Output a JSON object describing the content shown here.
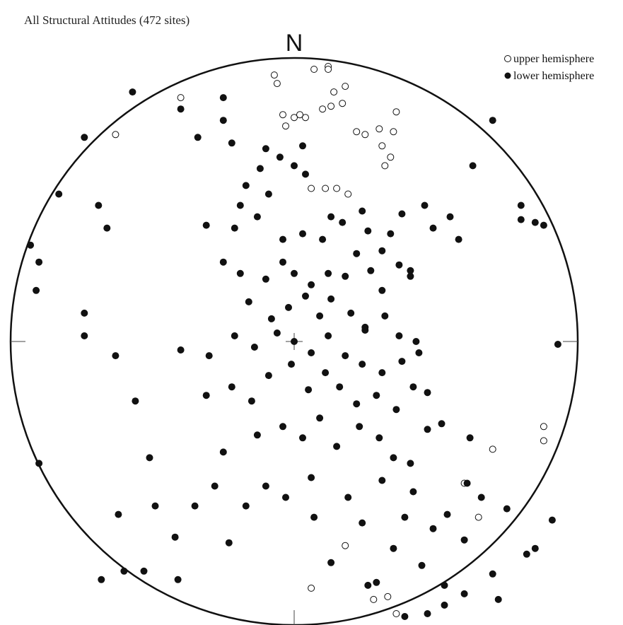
{
  "chart_data": {
    "type": "scatter",
    "projection": "equal-area stereonet",
    "title": "All Structural Attitudes (472 sites)",
    "north_label": "N",
    "legend": {
      "placement": "top-right",
      "entries": [
        {
          "key": "upper",
          "label": "upper hemisphere",
          "marker": "open-circle"
        },
        {
          "key": "lower",
          "label": "lower hemisphere",
          "marker": "filled-circle"
        }
      ]
    },
    "coordinate_note": "points given as normalized positions within the projection circle: x east-positive, y north-positive, radius 1",
    "xlim": [
      -1,
      1
    ],
    "ylim": [
      -1,
      1
    ],
    "series": [
      {
        "name": "upper hemisphere",
        "key": "upper",
        "points": [
          [
            -0.4,
            0.86
          ],
          [
            -0.63,
            0.73
          ],
          [
            -0.07,
            0.94
          ],
          [
            0.07,
            0.96
          ],
          [
            0.12,
            0.97
          ],
          [
            -0.06,
            0.91
          ],
          [
            0.18,
            0.9
          ],
          [
            0.14,
            0.88
          ],
          [
            0.17,
            0.84
          ],
          [
            0.13,
            0.83
          ],
          [
            0.1,
            0.82
          ],
          [
            -0.04,
            0.8
          ],
          [
            0.0,
            0.79
          ],
          [
            0.04,
            0.79
          ],
          [
            0.22,
            0.74
          ],
          [
            0.3,
            0.75
          ],
          [
            0.25,
            0.73
          ],
          [
            -0.03,
            0.76
          ],
          [
            0.02,
            0.8
          ],
          [
            0.11,
            0.54
          ],
          [
            0.15,
            0.54
          ],
          [
            0.19,
            0.52
          ],
          [
            0.06,
            0.54
          ],
          [
            0.34,
            0.65
          ],
          [
            0.31,
            0.69
          ],
          [
            0.32,
            0.62
          ],
          [
            0.12,
            0.96
          ],
          [
            0.36,
            0.81
          ],
          [
            0.35,
            0.74
          ],
          [
            0.7,
            -0.38
          ],
          [
            0.88,
            -0.3
          ],
          [
            0.88,
            -0.35
          ],
          [
            0.6,
            -0.5
          ],
          [
            0.65,
            -0.62
          ],
          [
            0.18,
            -0.72
          ],
          [
            0.06,
            -0.87
          ],
          [
            0.28,
            -0.91
          ],
          [
            0.33,
            -0.9
          ],
          [
            0.36,
            -0.96
          ]
        ]
      },
      {
        "name": "lower hemisphere",
        "key": "lower",
        "points": [
          [
            -0.74,
            0.72
          ],
          [
            -0.57,
            0.88
          ],
          [
            -0.25,
            0.86
          ],
          [
            -0.4,
            0.82
          ],
          [
            -0.25,
            0.78
          ],
          [
            -0.34,
            0.72
          ],
          [
            -0.22,
            0.7
          ],
          [
            -0.1,
            0.68
          ],
          [
            0.03,
            0.69
          ],
          [
            -0.05,
            0.65
          ],
          [
            -0.12,
            0.61
          ],
          [
            0.0,
            0.62
          ],
          [
            -0.17,
            0.55
          ],
          [
            0.04,
            0.59
          ],
          [
            -0.09,
            0.52
          ],
          [
            -0.19,
            0.48
          ],
          [
            -0.31,
            0.41
          ],
          [
            -0.21,
            0.4
          ],
          [
            -0.13,
            0.44
          ],
          [
            -0.04,
            0.36
          ],
          [
            0.03,
            0.38
          ],
          [
            0.1,
            0.36
          ],
          [
            0.13,
            0.44
          ],
          [
            0.17,
            0.42
          ],
          [
            0.24,
            0.46
          ],
          [
            0.26,
            0.39
          ],
          [
            0.34,
            0.38
          ],
          [
            0.31,
            0.32
          ],
          [
            0.38,
            0.45
          ],
          [
            -0.69,
            0.48
          ],
          [
            -0.25,
            0.28
          ],
          [
            -0.19,
            0.24
          ],
          [
            -0.1,
            0.22
          ],
          [
            -0.04,
            0.28
          ],
          [
            0.0,
            0.24
          ],
          [
            0.06,
            0.2
          ],
          [
            0.12,
            0.24
          ],
          [
            0.18,
            0.23
          ],
          [
            0.22,
            0.31
          ],
          [
            0.27,
            0.25
          ],
          [
            0.31,
            0.18
          ],
          [
            0.37,
            0.27
          ],
          [
            0.41,
            0.23
          ],
          [
            -0.16,
            0.14
          ],
          [
            -0.08,
            0.08
          ],
          [
            -0.02,
            0.12
          ],
          [
            0.04,
            0.16
          ],
          [
            0.09,
            0.09
          ],
          [
            0.13,
            0.15
          ],
          [
            0.2,
            0.1
          ],
          [
            0.25,
            0.04
          ],
          [
            0.32,
            0.09
          ],
          [
            0.37,
            0.02
          ],
          [
            0.43,
            0.0
          ],
          [
            -0.74,
            0.1
          ],
          [
            -0.63,
            -0.05
          ],
          [
            -0.4,
            -0.03
          ],
          [
            -0.3,
            -0.05
          ],
          [
            -0.21,
            0.02
          ],
          [
            -0.14,
            -0.02
          ],
          [
            -0.06,
            0.03
          ],
          [
            0.0,
            0.0
          ],
          [
            0.06,
            -0.04
          ],
          [
            0.12,
            0.02
          ],
          [
            0.18,
            -0.05
          ],
          [
            0.24,
            -0.08
          ],
          [
            0.31,
            -0.11
          ],
          [
            0.38,
            -0.07
          ],
          [
            0.44,
            -0.04
          ],
          [
            -0.56,
            -0.21
          ],
          [
            -0.31,
            -0.19
          ],
          [
            -0.22,
            -0.16
          ],
          [
            -0.15,
            -0.21
          ],
          [
            -0.09,
            -0.12
          ],
          [
            -0.01,
            -0.08
          ],
          [
            0.05,
            -0.17
          ],
          [
            0.11,
            -0.11
          ],
          [
            0.16,
            -0.16
          ],
          [
            0.22,
            -0.22
          ],
          [
            0.29,
            -0.19
          ],
          [
            0.36,
            -0.24
          ],
          [
            0.42,
            -0.16
          ],
          [
            0.47,
            -0.18
          ],
          [
            -0.51,
            -0.41
          ],
          [
            -0.25,
            -0.39
          ],
          [
            -0.13,
            -0.33
          ],
          [
            -0.04,
            -0.3
          ],
          [
            0.03,
            -0.34
          ],
          [
            0.09,
            -0.27
          ],
          [
            0.15,
            -0.37
          ],
          [
            0.23,
            -0.3
          ],
          [
            0.3,
            -0.34
          ],
          [
            0.35,
            -0.41
          ],
          [
            0.41,
            -0.43
          ],
          [
            0.47,
            -0.31
          ],
          [
            0.52,
            -0.29
          ],
          [
            0.62,
            -0.34
          ],
          [
            0.61,
            -0.5
          ],
          [
            0.42,
            -0.53
          ],
          [
            0.31,
            -0.49
          ],
          [
            0.19,
            -0.55
          ],
          [
            0.06,
            -0.48
          ],
          [
            -0.03,
            -0.55
          ],
          [
            -0.1,
            -0.51
          ],
          [
            -0.17,
            -0.58
          ],
          [
            -0.28,
            -0.51
          ],
          [
            -0.35,
            -0.58
          ],
          [
            -0.49,
            -0.58
          ],
          [
            -0.62,
            -0.61
          ],
          [
            0.24,
            -0.64
          ],
          [
            0.39,
            -0.62
          ],
          [
            0.49,
            -0.66
          ],
          [
            0.54,
            -0.61
          ],
          [
            0.6,
            -0.7
          ],
          [
            0.66,
            -0.55
          ],
          [
            0.75,
            -0.59
          ],
          [
            0.85,
            -0.73
          ],
          [
            0.91,
            -0.63
          ],
          [
            0.07,
            -0.62
          ],
          [
            -0.23,
            -0.71
          ],
          [
            -0.42,
            -0.69
          ],
          [
            -0.68,
            -0.84
          ],
          [
            -0.6,
            -0.81
          ],
          [
            -0.53,
            -0.81
          ],
          [
            -0.41,
            -0.84
          ],
          [
            0.13,
            -0.78
          ],
          [
            0.35,
            -0.73
          ],
          [
            0.45,
            -0.79
          ],
          [
            0.26,
            -0.86
          ],
          [
            0.53,
            -0.86
          ],
          [
            0.82,
            -0.75
          ],
          [
            0.7,
            -0.82
          ],
          [
            0.6,
            -0.89
          ],
          [
            0.72,
            -0.91
          ],
          [
            0.47,
            -0.96
          ],
          [
            0.39,
            -0.97
          ],
          [
            0.53,
            -0.93
          ],
          [
            0.29,
            -0.85
          ],
          [
            -0.9,
            -0.43
          ],
          [
            -0.9,
            0.28
          ],
          [
            -0.83,
            0.52
          ],
          [
            -0.91,
            0.18
          ],
          [
            0.8,
            0.48
          ],
          [
            0.8,
            0.43
          ],
          [
            0.63,
            0.62
          ],
          [
            0.7,
            0.78
          ],
          [
            0.41,
            0.25
          ],
          [
            0.46,
            0.48
          ],
          [
            0.49,
            0.4
          ],
          [
            0.55,
            0.44
          ],
          [
            0.58,
            0.36
          ],
          [
            0.25,
            0.05
          ],
          [
            0.85,
            0.42
          ],
          [
            0.88,
            0.41
          ],
          [
            0.93,
            -0.01
          ],
          [
            -0.93,
            0.34
          ],
          [
            -0.74,
            0.02
          ],
          [
            -0.66,
            0.4
          ]
        ]
      }
    ]
  },
  "colors": {
    "ink": "#111111",
    "title": "#222222",
    "background": "#ffffff"
  }
}
